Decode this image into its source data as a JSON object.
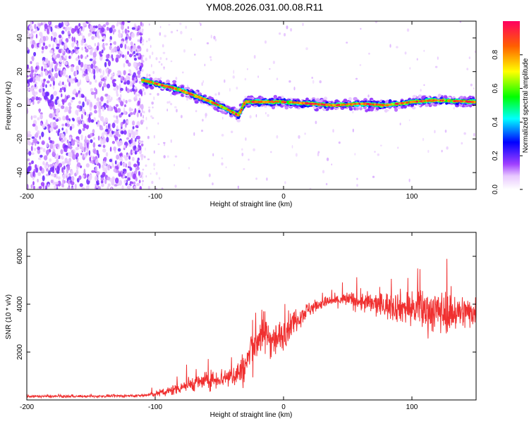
{
  "title": "YM08.2026.031.00.08.R11",
  "chart_data": [
    {
      "type": "heatmap",
      "title": "YM08.2026.031.00.08.R11",
      "xlabel": "Height of straight line (km)",
      "ylabel": "Frequency (Hz)",
      "xlim": [
        -200,
        150
      ],
      "ylim": [
        -50,
        50
      ],
      "x_ticks": [
        -200,
        -100,
        0,
        100
      ],
      "y_ticks": [
        -40,
        -20,
        0,
        20,
        40
      ],
      "colorbar": {
        "label": "Normalized spectral amplitude",
        "range": [
          0.0,
          1.0
        ],
        "ticks": [
          "0.0",
          "0.2",
          "0.4",
          "0.6",
          "0.8"
        ]
      },
      "ridge": {
        "x": [
          -110,
          -100,
          -90,
          -80,
          -70,
          -60,
          -50,
          -40,
          -35,
          -30,
          -20,
          -10,
          0,
          20,
          40,
          60,
          80,
          100,
          120,
          150
        ],
        "freq": [
          15,
          13,
          11,
          9,
          6,
          3,
          0,
          -4,
          -6,
          2,
          2,
          2,
          2,
          1,
          0,
          1,
          0,
          2,
          3,
          2
        ]
      },
      "noise_region_x": [
        -200,
        -110
      ]
    },
    {
      "type": "line",
      "xlabel": "Height of straight line (km)",
      "ylabel": "SNR (10 * v/v)",
      "xlim": [
        -200,
        150
      ],
      "ylim": [
        0,
        7000
      ],
      "x_ticks": [
        -200,
        -100,
        0,
        100
      ],
      "y_ticks": [
        2000,
        4000,
        6000
      ],
      "series": [
        {
          "name": "SNR",
          "color": "#f03030",
          "x": [
            -200,
            -150,
            -110,
            -100,
            -90,
            -80,
            -70,
            -60,
            -50,
            -40,
            -30,
            -25,
            -20,
            -15,
            -10,
            -5,
            0,
            10,
            20,
            30,
            40,
            50,
            60,
            70,
            80,
            90,
            100,
            110,
            120,
            130,
            140,
            150
          ],
          "y": [
            150,
            150,
            180,
            250,
            350,
            550,
            700,
            800,
            900,
            1000,
            1300,
            2200,
            2600,
            2800,
            2600,
            2500,
            2800,
            3400,
            3800,
            4050,
            4150,
            4200,
            4100,
            4000,
            3950,
            3900,
            3800,
            3750,
            3700,
            3650,
            3650,
            3700
          ],
          "noise_amplitude": [
            60,
            60,
            70,
            150,
            250,
            350,
            400,
            450,
            500,
            600,
            900,
            1200,
            1200,
            1100,
            1000,
            900,
            800,
            600,
            400,
            300,
            300,
            400,
            500,
            600,
            700,
            800,
            900,
            1100,
            1100,
            1000,
            900,
            700
          ]
        }
      ]
    }
  ]
}
